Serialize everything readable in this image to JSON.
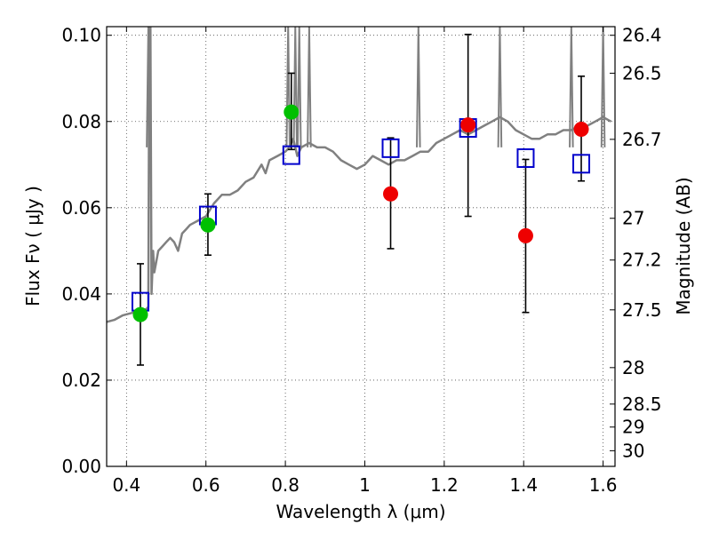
{
  "chart_data": {
    "type": "scatter",
    "xlabel": "Wavelength  λ (μm)",
    "ylabel": "Flux  Fν  ( μJy )",
    "ylabel_right": "Magnitude (AB)",
    "xlim": [
      0.35,
      1.63
    ],
    "ylim": [
      0.0,
      0.102
    ],
    "grid": true,
    "x_ticks": [
      0.4,
      0.6,
      0.8,
      1.0,
      1.2,
      1.4,
      1.6
    ],
    "x_tick_labels": [
      "0.4",
      "0.6",
      "0.8",
      "1",
      "1.2",
      "1.4",
      "1.6"
    ],
    "y_ticks": [
      0.0,
      0.02,
      0.04,
      0.06,
      0.08,
      0.1
    ],
    "y_tick_labels": [
      "0.00",
      "0.02",
      "0.04",
      "0.06",
      "0.08",
      "0.10"
    ],
    "right_ticks": [
      {
        "label": "26.4",
        "mag": 26.4
      },
      {
        "label": "26.5",
        "mag": 26.5
      },
      {
        "label": "26.7",
        "mag": 26.7
      },
      {
        "label": "27",
        "mag": 27.0
      },
      {
        "label": "27.2",
        "mag": 27.2
      },
      {
        "label": "27.5",
        "mag": 27.5
      },
      {
        "label": "28",
        "mag": 28.0
      },
      {
        "label": "28.5",
        "mag": 28.5
      },
      {
        "label": "29",
        "mag": 29.0
      },
      {
        "label": "30",
        "mag": 30.0
      }
    ],
    "colors": {
      "model": "#808080",
      "green": "#00c000",
      "red": "#ee0000",
      "box": "#0000cc",
      "errorbar": "#000000"
    },
    "series": [
      {
        "name": "model spectrum",
        "kind": "line",
        "color": "#808080",
        "x": [
          0.35,
          0.37,
          0.39,
          0.41,
          0.43,
          0.45,
          0.455,
          0.457,
          0.46,
          0.463,
          0.467,
          0.47,
          0.48,
          0.49,
          0.5,
          0.51,
          0.52,
          0.53,
          0.54,
          0.55,
          0.56,
          0.58,
          0.6,
          0.62,
          0.64,
          0.66,
          0.68,
          0.7,
          0.72,
          0.74,
          0.75,
          0.76,
          0.78,
          0.8,
          0.81,
          0.82,
          0.83,
          0.84,
          0.86,
          0.88,
          0.9,
          0.92,
          0.94,
          0.96,
          0.98,
          1.0,
          1.02,
          1.04,
          1.06,
          1.08,
          1.1,
          1.12,
          1.14,
          1.16,
          1.18,
          1.2,
          1.22,
          1.24,
          1.26,
          1.28,
          1.3,
          1.32,
          1.34,
          1.36,
          1.38,
          1.4,
          1.42,
          1.44,
          1.46,
          1.48,
          1.5,
          1.52,
          1.54,
          1.56,
          1.58,
          1.6,
          1.62
        ],
        "y": [
          0.0335,
          0.034,
          0.035,
          0.0355,
          0.036,
          0.0365,
          0.037,
          0.09,
          0.105,
          0.04,
          0.05,
          0.045,
          0.05,
          0.051,
          0.052,
          0.053,
          0.052,
          0.05,
          0.054,
          0.055,
          0.056,
          0.057,
          0.058,
          0.061,
          0.063,
          0.063,
          0.064,
          0.066,
          0.067,
          0.07,
          0.068,
          0.071,
          0.072,
          0.073,
          0.074,
          0.076,
          0.072,
          0.074,
          0.075,
          0.074,
          0.074,
          0.073,
          0.071,
          0.07,
          0.069,
          0.07,
          0.072,
          0.071,
          0.07,
          0.071,
          0.071,
          0.072,
          0.073,
          0.073,
          0.075,
          0.076,
          0.077,
          0.078,
          0.077,
          0.078,
          0.079,
          0.08,
          0.081,
          0.08,
          0.078,
          0.077,
          0.076,
          0.076,
          0.077,
          0.077,
          0.078,
          0.078,
          0.079,
          0.079,
          0.08,
          0.081,
          0.08
        ]
      },
      {
        "name": "green points",
        "kind": "points",
        "marker": "circle",
        "color": "#00c000",
        "x": [
          0.435,
          0.605,
          0.815
        ],
        "y": [
          0.0352,
          0.056,
          0.0822
        ],
        "yerr_low": [
          null,
          null,
          null
        ],
        "yerr_high": [
          null,
          null,
          null
        ]
      },
      {
        "name": "red points",
        "kind": "points",
        "marker": "circle",
        "color": "#ee0000",
        "x": [
          1.065,
          1.26,
          1.405,
          1.545
        ],
        "y": [
          0.0632,
          0.0792,
          0.0535,
          0.0782
        ],
        "yerr_low": [
          null,
          null,
          null,
          null
        ],
        "yerr_high": [
          null,
          null,
          null,
          null
        ]
      },
      {
        "name": "model photometry",
        "kind": "points",
        "marker": "square-open",
        "color": "#0000cc",
        "x": [
          0.435,
          0.605,
          0.815,
          1.065,
          1.26,
          1.405,
          1.545
        ],
        "y": [
          0.0382,
          0.0582,
          0.0722,
          0.0738,
          0.0785,
          0.0715,
          0.0702
        ]
      },
      {
        "name": "error bars",
        "kind": "errorbars",
        "color": "#000000",
        "x": [
          0.435,
          0.605,
          0.815,
          1.065,
          1.26,
          1.405,
          1.545
        ],
        "low": [
          0.0235,
          0.049,
          0.0735,
          0.0505,
          0.058,
          0.0357,
          0.0662
        ],
        "high": [
          0.047,
          0.0632,
          0.0912,
          0.0762,
          0.1002,
          0.0712,
          0.0905
        ]
      }
    ]
  }
}
